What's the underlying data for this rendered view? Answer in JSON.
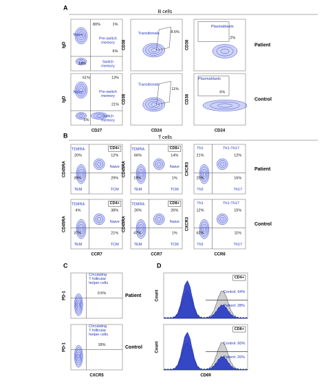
{
  "panels": [
    {
      "letter": "A",
      "header": "B cells",
      "rows": [
        "Patient",
        "Control"
      ],
      "plots": [
        {
          "y_label": "IgD",
          "texts": [
            "Naive",
            "80%",
            "1%",
            "Pre-switch memory",
            "6%",
            "13%",
            "Switch memory"
          ]
        },
        {
          "y_label": "CD38",
          "texts": [
            "Transitionals",
            "8.5%"
          ]
        },
        {
          "y_label": "CD38",
          "texts": [
            "Plasmablasts",
            "2%"
          ]
        },
        {
          "y_label": "IgD",
          "x_label": "CD27",
          "texts": [
            "61%",
            "13%",
            "Naive",
            "Pre-switch memory",
            "21%",
            "5%",
            "Switch memory"
          ]
        },
        {
          "y_label": "CD38",
          "x_label": "CD24",
          "texts": [
            "Transitionals",
            "11%"
          ]
        },
        {
          "y_label": "CD38",
          "x_label": "CD24",
          "texts": [
            "Plasmablasts",
            "6%"
          ]
        }
      ]
    },
    {
      "letter": "B",
      "header": "T cells",
      "rows": [
        "Patient",
        "Control"
      ],
      "plots": [
        {
          "y_label": "CD45RA",
          "texts": [
            "CD4+",
            "TEMRA",
            "20%",
            "12%",
            "Naive",
            "39%",
            "29%",
            "TEM",
            "TCM"
          ]
        },
        {
          "y_label": "CD45RA",
          "texts": [
            "CD8+",
            "TEMRA",
            "66%",
            "14%",
            "Naive",
            "19%",
            "1%",
            "TEM",
            "TCM"
          ]
        },
        {
          "y_label": "CXCR3",
          "texts": [
            "Th1",
            "Th1-Th17",
            "21%",
            "12%",
            "20%",
            "16%",
            "Th2",
            "Th17"
          ]
        },
        {
          "y_label": "CD45RA",
          "x_label": "CCR7",
          "texts": [
            "CD4+",
            "TEMRA",
            "4%",
            "38%",
            "Naive",
            "37%",
            "21%",
            "TEM",
            "TCM"
          ]
        },
        {
          "y_label": "CD45RA",
          "x_label": "CCR7",
          "texts": [
            "CD8+",
            "TEMRA",
            "26%",
            "26%",
            "Naive",
            "47%",
            "1%",
            "TEM",
            "TCM"
          ]
        },
        {
          "y_label": "CXCR3",
          "x_label": "CCR6",
          "texts": [
            "Th1",
            "Th1-Th17",
            "12%",
            "15%",
            "62%",
            "11%",
            "Th2",
            "Th17"
          ]
        }
      ]
    },
    {
      "letter": "C",
      "rows": [
        "Patient",
        "Control"
      ],
      "plots": [
        {
          "y_label": "PD-1",
          "texts": [
            "Circulating T follicular helper cells",
            "0.5%"
          ]
        },
        {
          "y_label": "PD-1",
          "x_label": "CXCR5",
          "texts": [
            "Circulating T follicular helper cells",
            "18%"
          ]
        }
      ]
    },
    {
      "letter": "D",
      "plots": [
        {
          "y_label": "Count",
          "texts": [
            "CD4+",
            "Control: 64%",
            "Patient: 28%"
          ]
        },
        {
          "y_label": "Count",
          "x_label": "CD69",
          "texts": [
            "CD8+",
            "Control: 60%",
            "Patient: 26%"
          ]
        }
      ]
    }
  ]
}
